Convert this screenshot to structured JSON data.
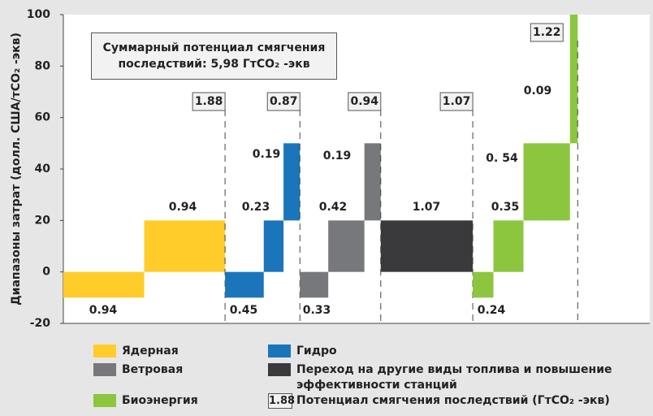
{
  "chart_data": {
    "type": "cost_blocks",
    "ylabel": "Диапазоны затрат (долл. США/тCO₂ -экв)",
    "annotation": [
      "Суммарный потенциал смягчения",
      "последствий: 5,98 ГтCO₂ -экв"
    ],
    "ylim": [
      -20,
      100
    ],
    "yticks": [
      -20,
      0,
      20,
      40,
      60,
      80,
      100
    ],
    "legend_box_label": "Потенциал смягчения последствий (ГтCO₂ -экв)",
    "groups": [
      {
        "name": "Ядерная",
        "color": "#ffcc29",
        "total": 1.88,
        "blocks": [
          {
            "potential": 0.94,
            "low": -10,
            "high": 0
          },
          {
            "potential": 0.94,
            "low": 0,
            "high": 20
          }
        ]
      },
      {
        "name": "Гидро",
        "color": "#1b75bb",
        "total": 0.87,
        "blocks": [
          {
            "potential": 0.45,
            "low": -10,
            "high": 0
          },
          {
            "potential": 0.23,
            "low": 0,
            "high": 20
          },
          {
            "potential": 0.19,
            "low": 20,
            "high": 50
          }
        ]
      },
      {
        "name": "Ветровая",
        "color": "#77787b",
        "total": 0.94,
        "blocks": [
          {
            "potential": 0.33,
            "low": -10,
            "high": 0
          },
          {
            "potential": 0.42,
            "low": 0,
            "high": 20
          },
          {
            "potential": 0.19,
            "low": 20,
            "high": 50
          }
        ]
      },
      {
        "name": "Переход на другие виды топлива и повышение эффективности станций",
        "color": "#3a3a3c",
        "total": 1.07,
        "blocks": [
          {
            "potential": 1.07,
            "low": 0,
            "high": 20
          }
        ]
      },
      {
        "name": "Биоэнергия",
        "color": "#8cc63f",
        "total": 1.22,
        "blocks": [
          {
            "potential": 0.24,
            "low": -10,
            "high": 0
          },
          {
            "potential": 0.35,
            "low": 0,
            "high": 20
          },
          {
            "potential": 0.54,
            "label": "0. 54",
            "low": 20,
            "high": 50
          },
          {
            "potential": 0.09,
            "low": 50,
            "high": 100
          }
        ]
      }
    ]
  }
}
